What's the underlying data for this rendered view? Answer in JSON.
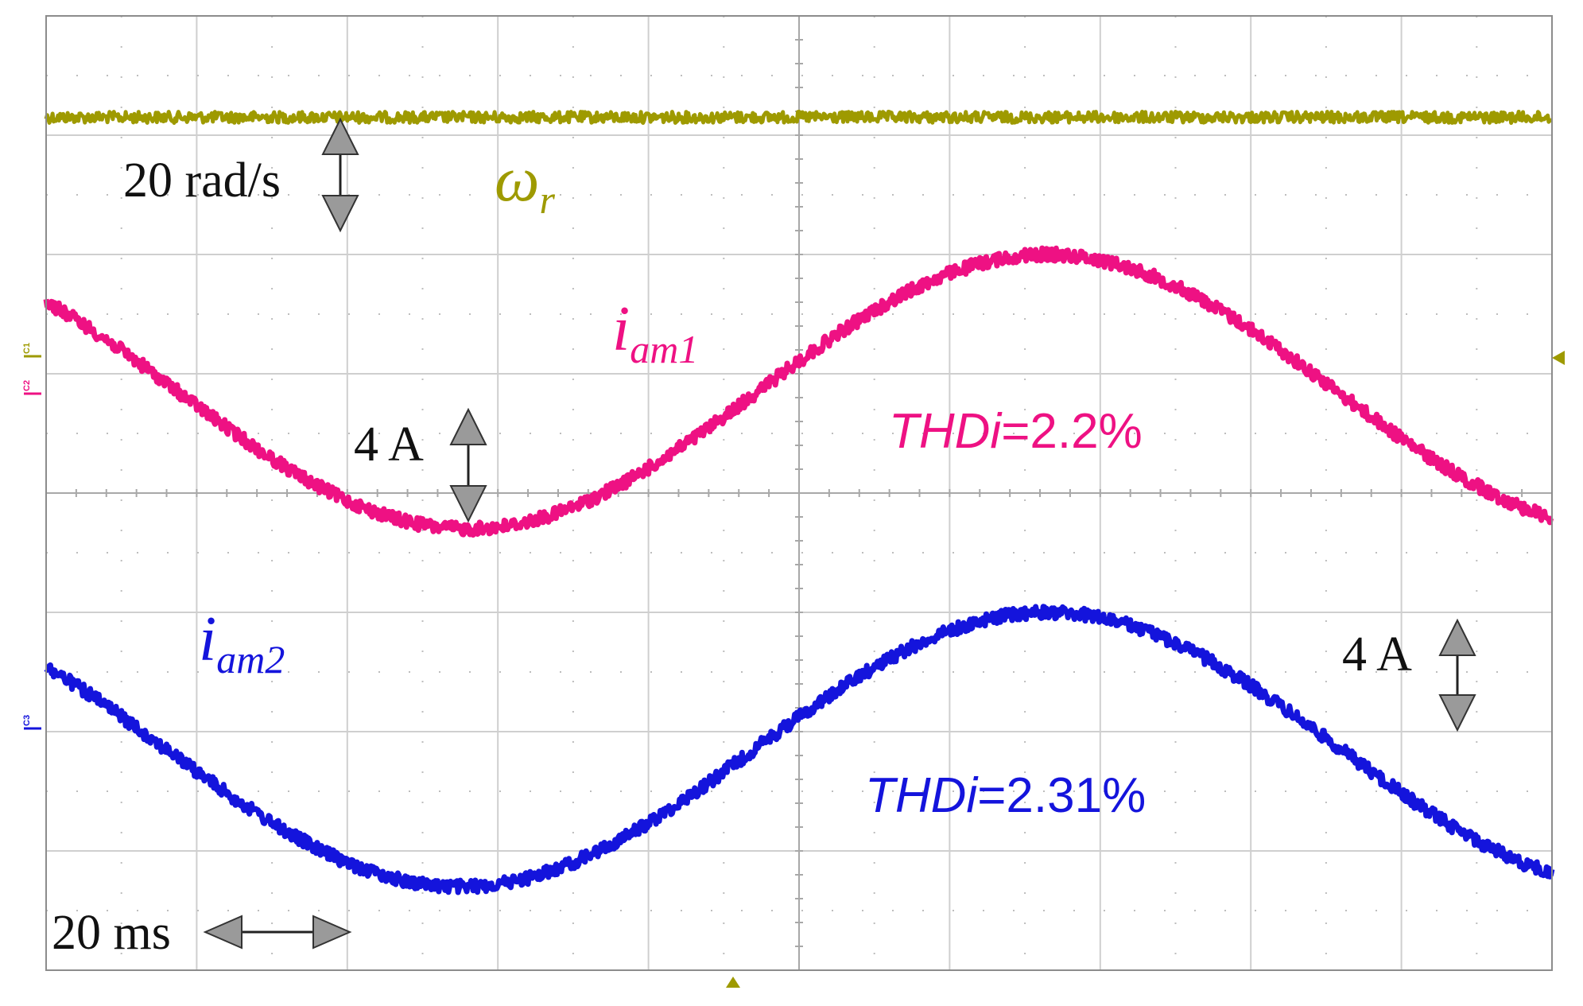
{
  "chart_data": {
    "type": "line",
    "grid": true,
    "x_divisions": 10,
    "y_divisions": 8,
    "time_scale_label": "20 ms",
    "series": [
      {
        "channel": "C1",
        "symbol": "ω",
        "subscript": "r",
        "scale_label": "20 rad/s",
        "color": "#9e9a00",
        "shape": "flat",
        "level_div": 0.85
      },
      {
        "channel": "C2",
        "symbol": "i",
        "subscript": "am1",
        "scale_label": "4 A",
        "thd_prefix": "THDi",
        "thd_value": "=2.2%",
        "color": "#ee1183",
        "shape": "sine",
        "min_time_div": 2.8,
        "max_time_div": 6.65,
        "min_div": 4.3,
        "max_div": 2.0,
        "start_div": 2.7,
        "end_div": 4.05
      },
      {
        "channel": "C3",
        "symbol": "i",
        "subscript": "am2",
        "scale_label": "4 A",
        "thd_prefix": "THDi",
        "thd_value": "=2.31%",
        "color": "#1414dc",
        "shape": "sine",
        "min_time_div": 2.75,
        "max_time_div": 6.65,
        "min_div": 7.3,
        "max_div": 5.0,
        "start_div": 5.25,
        "end_div": 7.0
      }
    ],
    "channel_markers": [
      "C1",
      "C2",
      "C3"
    ]
  }
}
